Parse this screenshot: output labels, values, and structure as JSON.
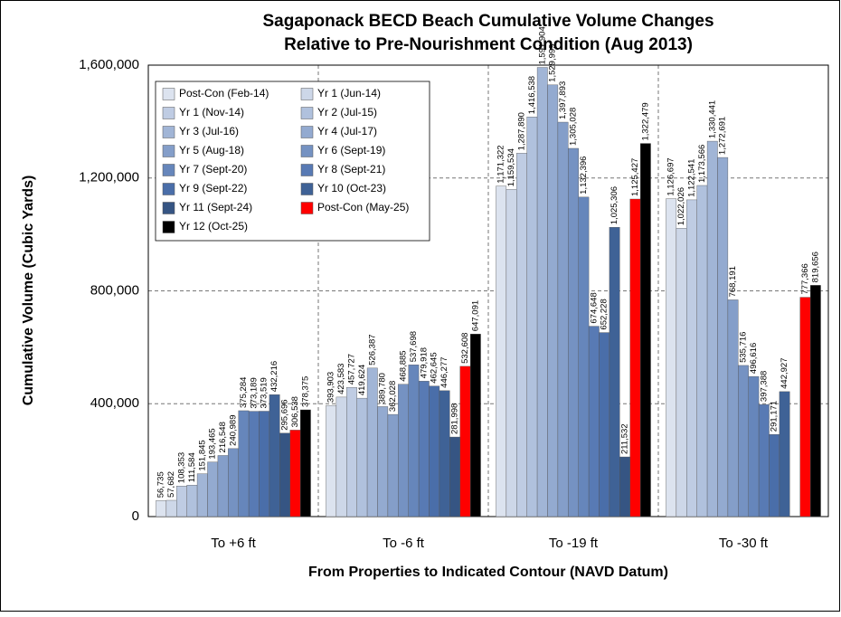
{
  "chart_data": {
    "type": "bar",
    "title": [
      "Sagaponack BECD Beach Cumulative Volume Changes",
      "Relative to Pre-Nourishment Condition (Aug 2013)"
    ],
    "x_label": "From Properties to Indicated Contour (NAVD Datum)",
    "y_label": "Cumulative Volume (Cubic Yards)",
    "categories": [
      "To +6 ft",
      "To -6 ft",
      "To -19 ft",
      "To -30 ft"
    ],
    "ylim": [
      0,
      1600000
    ],
    "yticks": [
      0,
      {
        "value": 400000,
        "label": "400,000"
      },
      {
        "value": 800000,
        "label": "800,000"
      },
      {
        "value": 1200000,
        "label": "1,200,000"
      },
      {
        "value": 1600000,
        "label": "1,600,000"
      }
    ],
    "grid": true,
    "legend": "upper left",
    "series": [
      {
        "name": "Post-Con (Feb-14)",
        "color": "#dce3ef",
        "values": [
          56735,
          393903,
          1171322,
          1126697
        ],
        "value_labels": [
          "56,735",
          "393,903",
          "1,171,322",
          "1,126,697"
        ]
      },
      {
        "name": "Yr 1 (Jun-14)",
        "color": "#cdd7e8",
        "values": [
          57682,
          423583,
          1159534,
          1022026
        ],
        "value_labels": [
          "57,682",
          "423,583",
          "1,159,534",
          "1,022,026"
        ]
      },
      {
        "name": "Yr 1 (Nov-14)",
        "color": "#bfcce3",
        "values": [
          108353,
          457727,
          1287890,
          1122541
        ],
        "value_labels": [
          "108,353",
          "457,727",
          "1,287,890",
          "1,122,541"
        ]
      },
      {
        "name": "Yr 2 (Jul-15)",
        "color": "#b0c1dd",
        "values": [
          111584,
          419624,
          1416538,
          1173566
        ],
        "value_labels": [
          "111,584",
          "419,624",
          "1,416,538",
          "1,173,566"
        ]
      },
      {
        "name": "Yr 3 (Jul-16)",
        "color": "#a1b5d6",
        "values": [
          151845,
          526387,
          1591904,
          1330441
        ],
        "value_labels": [
          "151,845",
          "526,387",
          "1,591,904",
          "1,330,441"
        ]
      },
      {
        "name": "Yr 4 (Jul-17)",
        "color": "#93aad0",
        "values": [
          193465,
          389780,
          1529999,
          1272691
        ],
        "value_labels": [
          "193,465",
          "389,780",
          "1,529,999",
          "1,272,691"
        ]
      },
      {
        "name": "Yr 5 (Aug-18)",
        "color": "#849ec9",
        "values": [
          216548,
          362028,
          1397893,
          768191
        ],
        "value_labels": [
          "216,548",
          "362,028",
          "1,397,893",
          "768,191"
        ]
      },
      {
        "name": "Yr 6 (Sept-19)",
        "color": "#7592c2",
        "values": [
          240989,
          468885,
          1305028,
          535716
        ],
        "value_labels": [
          "240,989",
          "468,885",
          "1,305,028",
          "535,716"
        ]
      },
      {
        "name": "Yr 7 (Sept-20)",
        "color": "#6686bb",
        "values": [
          375284,
          537698,
          1132396,
          496616
        ],
        "value_labels": [
          "375,284",
          "537,698",
          "1,132,396",
          "496,616"
        ]
      },
      {
        "name": "Yr 8 (Sept-21)",
        "color": "#587ab4",
        "values": [
          373189,
          479918,
          674648,
          397388
        ],
        "value_labels": [
          "373,189",
          "479,918",
          "674,648",
          "397,388"
        ]
      },
      {
        "name": "Yr 9 (Sept-22)",
        "color": "#4a6ea9",
        "values": [
          373519,
          462645,
          652228,
          291171
        ],
        "value_labels": [
          "373,519",
          "462,645",
          "652,228",
          "291,171"
        ]
      },
      {
        "name": "Yr 10 (Oct-23)",
        "color": "#3f6296",
        "values": [
          432216,
          446277,
          1025306,
          442927
        ],
        "value_labels": [
          "432,216",
          "446,277",
          "1,025,306",
          "442,927"
        ]
      },
      {
        "name": "Yr 11 (Sept-24)",
        "color": "#365583",
        "values": [
          295696,
          281998,
          211532,
          null
        ],
        "value_labels": [
          "295,696",
          "281,998",
          "211,532",
          null
        ]
      },
      {
        "name": "Post-Con (May-25)",
        "color": "#ff0000",
        "values": [
          306538,
          532608,
          1125427,
          777366
        ],
        "value_labels": [
          "306,538",
          "532,608",
          "1,125,427",
          "777,366"
        ]
      },
      {
        "name": "Yr 12 (Oct-25)",
        "color": "#000000",
        "values": [
          378375,
          647091,
          1322479,
          819656
        ],
        "value_labels": [
          "378,375",
          "647,091",
          "1,322,479",
          "819,656"
        ]
      }
    ]
  }
}
